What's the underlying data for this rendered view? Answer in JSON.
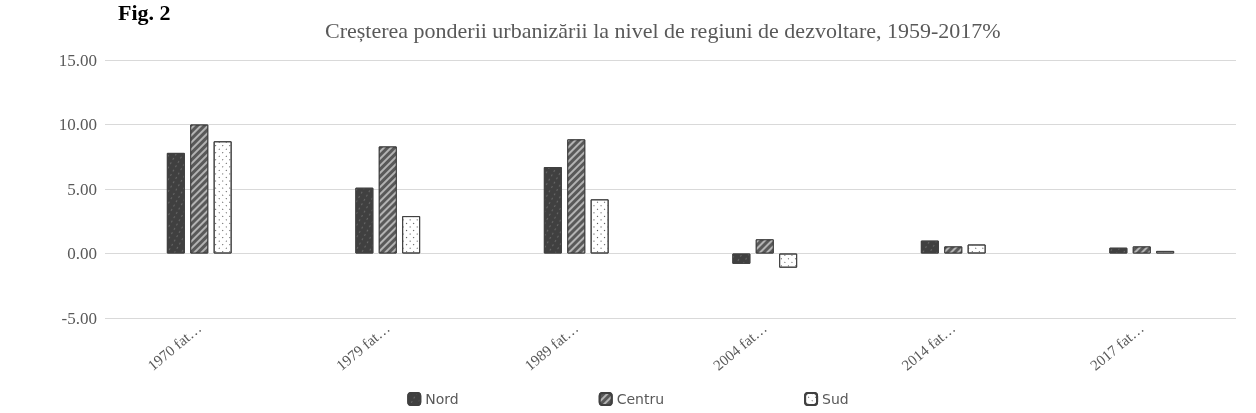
{
  "chart_data": {
    "type": "bar",
    "title": "Creșterea ponderii urbanizării la nivel de regiuni de dezvoltare, 1959-2017%",
    "annotations": [
      "Fig. 2"
    ],
    "categories": [
      "1970 fat…",
      "1979 fat…",
      "1989 fat…",
      "2004 fat…",
      "2014 fat…",
      "2017 fat…"
    ],
    "series": [
      {
        "name": "Nord",
        "color": "#404040",
        "values": [
          7.8,
          5.1,
          6.7,
          -0.8,
          1.0,
          0.45
        ]
      },
      {
        "name": "Centru",
        "color": "#595959",
        "values": [
          10.0,
          8.3,
          8.85,
          1.1,
          0.55,
          0.55
        ]
      },
      {
        "name": "Sud",
        "color": "#ffffff",
        "values": [
          8.7,
          2.9,
          4.2,
          -1.1,
          0.7,
          0.2
        ]
      }
    ],
    "ylim": [
      -5,
      15
    ],
    "yticks": [
      {
        "value": -5,
        "label": "-5.00"
      },
      {
        "value": 0,
        "label": "0.00"
      },
      {
        "value": 5,
        "label": "5.00"
      },
      {
        "value": 10,
        "label": "10.00"
      },
      {
        "value": 15,
        "label": "15.00"
      }
    ],
    "grid": "y",
    "legend": "bottom"
  }
}
